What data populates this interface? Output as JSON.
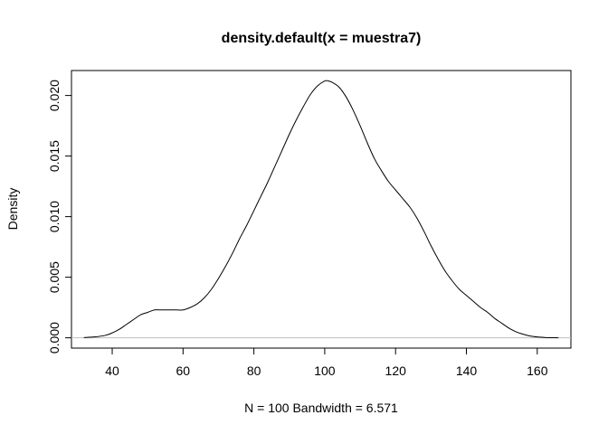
{
  "chart_data": {
    "type": "line",
    "title": "density.default(x = muestra7)",
    "xlabel": "N = 100   Bandwidth = 6.571",
    "ylabel": "Density",
    "xlim": [
      28.5,
      169.5
    ],
    "ylim": [
      -0.00085,
      0.02206
    ],
    "x_ticks": [
      40,
      60,
      80,
      100,
      120,
      140,
      160
    ],
    "y_ticks": [
      0.0,
      0.005,
      0.01,
      0.015,
      0.02
    ],
    "x_tick_labels": [
      "40",
      "60",
      "80",
      "100",
      "120",
      "140",
      "160"
    ],
    "y_tick_labels": [
      "0.000",
      "0.005",
      "0.010",
      "0.015",
      "0.020"
    ],
    "grid": false,
    "baseline": 0,
    "colors": {
      "line": "#000000",
      "baseline": "#bebebe",
      "axis": "#000000"
    },
    "series": [
      {
        "x": [
          32,
          35,
          38,
          40,
          42,
          44,
          46,
          48,
          50,
          52,
          54,
          56,
          58,
          60,
          62,
          64,
          66,
          68,
          70,
          72,
          74,
          76,
          78,
          80,
          82,
          84,
          86,
          88,
          90,
          92,
          94,
          96,
          98,
          100,
          101,
          102,
          104,
          106,
          108,
          110,
          112,
          114,
          116,
          118,
          120,
          122,
          124,
          126,
          128,
          130,
          132,
          134,
          136,
          138,
          140,
          142,
          144,
          146,
          148,
          150,
          152,
          154,
          156,
          158,
          160,
          162,
          164,
          166
        ],
        "values": [
          2e-05,
          7e-05,
          0.0002,
          0.0004,
          0.0007,
          0.0011,
          0.0015,
          0.0019,
          0.0021,
          0.0023,
          0.0023,
          0.0023,
          0.0023,
          0.0023,
          0.0025,
          0.0028,
          0.0033,
          0.004,
          0.0049,
          0.0059,
          0.007,
          0.0082,
          0.0093,
          0.0105,
          0.0117,
          0.0129,
          0.0142,
          0.0155,
          0.0168,
          0.018,
          0.0191,
          0.0201,
          0.0208,
          0.0212,
          0.0212,
          0.0211,
          0.0207,
          0.0199,
          0.0188,
          0.0175,
          0.0161,
          0.0148,
          0.0138,
          0.0129,
          0.0122,
          0.0115,
          0.0108,
          0.0099,
          0.0088,
          0.0076,
          0.0065,
          0.0055,
          0.0047,
          0.004,
          0.0035,
          0.003,
          0.0025,
          0.0021,
          0.0016,
          0.0012,
          0.0008,
          0.0005,
          0.0003,
          0.00015,
          7e-05,
          3e-05,
          1e-05,
          0.0
        ]
      }
    ]
  }
}
